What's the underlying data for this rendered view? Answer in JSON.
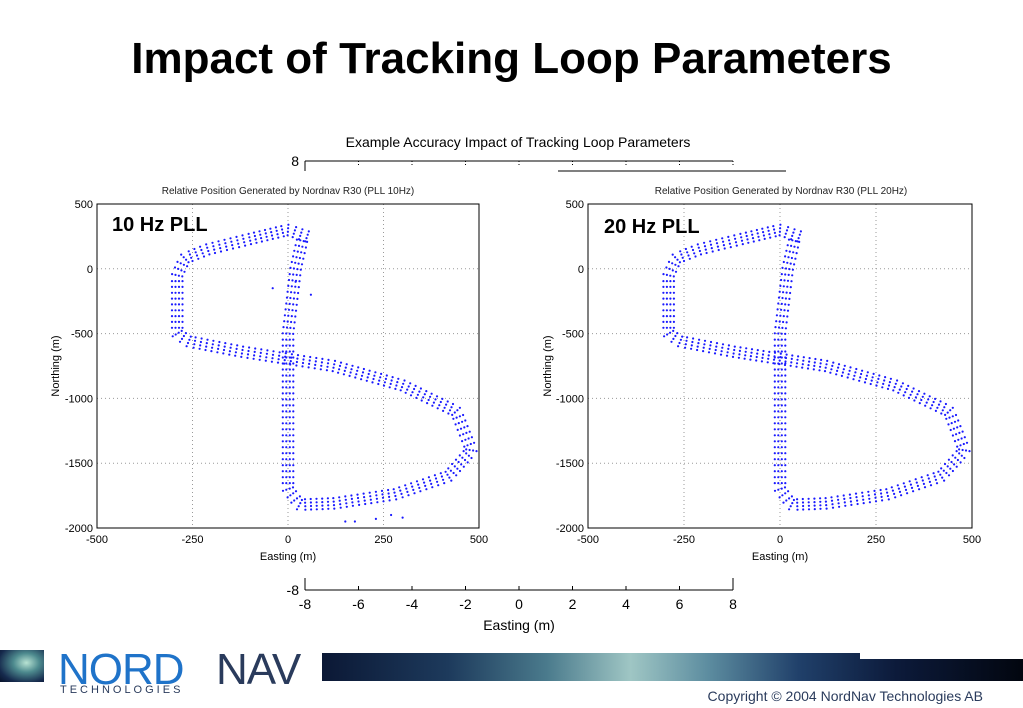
{
  "slide": {
    "title": "Impact of Tracking Loop Parameters",
    "copyright": "Copyright © 2004 NordNav Technologies AB"
  },
  "logo": {
    "part1": "NORD",
    "part2": "NAV",
    "subtitle": "TECHNOLOGIES"
  },
  "colors": {
    "points": "#1a1aff",
    "grid": "#9a9a9a",
    "footer_text": "#2a3b5c",
    "logo_blue": "#1f73c9"
  },
  "chart_data": [
    {
      "type": "scatter",
      "role": "outer-axes",
      "title": "Example Accuracy Impact of Tracking Loop Parameters",
      "xlabel": "Easting (m)",
      "ylabel": "",
      "xlim": [
        -8,
        8
      ],
      "ylim": [
        -8,
        8
      ],
      "xticks": [
        "-8",
        "-6",
        "-4",
        "-2",
        "0",
        "2",
        "4",
        "6",
        "8"
      ],
      "yticks": [
        "-8",
        "8"
      ]
    },
    {
      "type": "scatter",
      "title": "Relative Position Generated by Nordnav R30 (PLL 10Hz)",
      "annotation": "10 Hz  PLL",
      "xlabel": "Easting (m)",
      "ylabel": "Northing (m)",
      "xlim": [
        -500,
        500
      ],
      "ylim": [
        -2000,
        500
      ],
      "xticks": [
        "-500",
        "-250",
        "0",
        "250",
        "500"
      ],
      "yticks": [
        "500",
        "0",
        "-500",
        "-1000",
        "-1500",
        "-2000"
      ],
      "grid": true,
      "tracks": 4,
      "path": [
        [
          50,
          250
        ],
        [
          0,
          300
        ],
        [
          -100,
          230
        ],
        [
          -210,
          150
        ],
        [
          -270,
          80
        ],
        [
          -290,
          -50
        ],
        [
          -290,
          -500
        ],
        [
          -260,
          -560
        ],
        [
          -120,
          -640
        ],
        [
          120,
          -750
        ],
        [
          300,
          -900
        ],
        [
          440,
          -1100
        ],
        [
          480,
          -1400
        ],
        [
          420,
          -1600
        ],
        [
          280,
          -1740
        ],
        [
          120,
          -1810
        ],
        [
          30,
          -1820
        ],
        [
          0,
          -1700
        ],
        [
          0,
          -500
        ],
        [
          20,
          0
        ],
        [
          40,
          260
        ]
      ],
      "outliers": [
        [
          -40,
          -150
        ],
        [
          20,
          -100
        ],
        [
          60,
          -200
        ],
        [
          150,
          -1950
        ],
        [
          175,
          -1950
        ],
        [
          230,
          -1930
        ],
        [
          270,
          -1900
        ],
        [
          300,
          -1920
        ]
      ]
    },
    {
      "type": "scatter",
      "title": "Relative Position Generated by Nordnav R30 (PLL 20Hz)",
      "annotation": "20 Hz  PLL",
      "xlabel": "Easting (m)",
      "ylabel": "Northing (m)",
      "xlim": [
        -500,
        500
      ],
      "ylim": [
        -2000,
        500
      ],
      "xticks": [
        "-500",
        "-250",
        "0",
        "250",
        "500"
      ],
      "yticks": [
        "500",
        "0",
        "-500",
        "-1000",
        "-1500",
        "-2000"
      ],
      "grid": true,
      "tracks": 4,
      "path": [
        [
          50,
          250
        ],
        [
          0,
          300
        ],
        [
          -100,
          230
        ],
        [
          -210,
          150
        ],
        [
          -270,
          80
        ],
        [
          -290,
          -50
        ],
        [
          -290,
          -500
        ],
        [
          -260,
          -560
        ],
        [
          -120,
          -640
        ],
        [
          120,
          -750
        ],
        [
          300,
          -900
        ],
        [
          440,
          -1100
        ],
        [
          480,
          -1400
        ],
        [
          420,
          -1600
        ],
        [
          280,
          -1740
        ],
        [
          120,
          -1810
        ],
        [
          30,
          -1820
        ],
        [
          0,
          -1700
        ],
        [
          0,
          -500
        ],
        [
          20,
          0
        ],
        [
          40,
          260
        ]
      ],
      "outliers": []
    }
  ]
}
